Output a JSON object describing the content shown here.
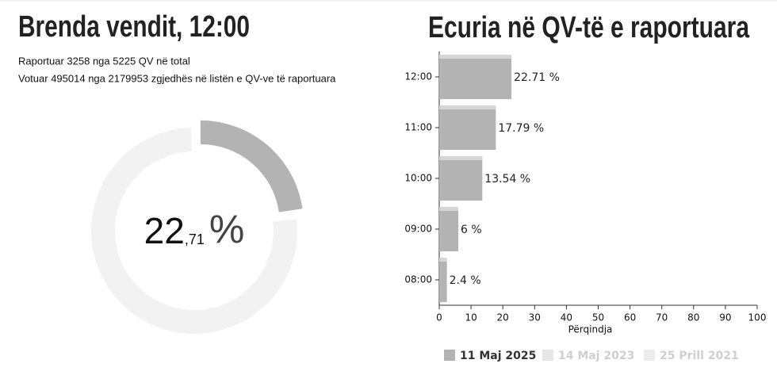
{
  "header": {
    "title": "Brenda vendit, 12:00",
    "line1": "Raportuar 3258 nga 5225 QV në total",
    "line2": "Votuar 495014 nga 2179953 zgjedhës në listën e QV-ve të raportuara"
  },
  "donut": {
    "value": 22.71,
    "label_parts": [
      "22",
      ",71",
      "%"
    ],
    "color": "#b3b3b3",
    "track_color": "#f2f2f2"
  },
  "chart_data": {
    "type": "bar",
    "orientation": "horizontal",
    "title": "Ecuria në QV-të e raportuara",
    "categories": [
      "12:00",
      "11:00",
      "10:00",
      "09:00",
      "08:00"
    ],
    "series": [
      {
        "name": "11 Maj 2025",
        "color": "#b3b3b3",
        "values": [
          22.71,
          17.79,
          13.54,
          6,
          2.4
        ],
        "value_labels": [
          "22.71 %",
          "17.79 %",
          "13.54 %",
          "6 %",
          "2.4 %"
        ]
      },
      {
        "name": "14 Maj 2023",
        "color": "#e6e6e6"
      },
      {
        "name": "25 Prill 2021",
        "color": "#ececec"
      }
    ],
    "xlim": [
      0,
      100
    ],
    "xticks": [
      0,
      10,
      20,
      30,
      40,
      50,
      60,
      70,
      80,
      90,
      100
    ],
    "xlabel": "Përqindja"
  }
}
